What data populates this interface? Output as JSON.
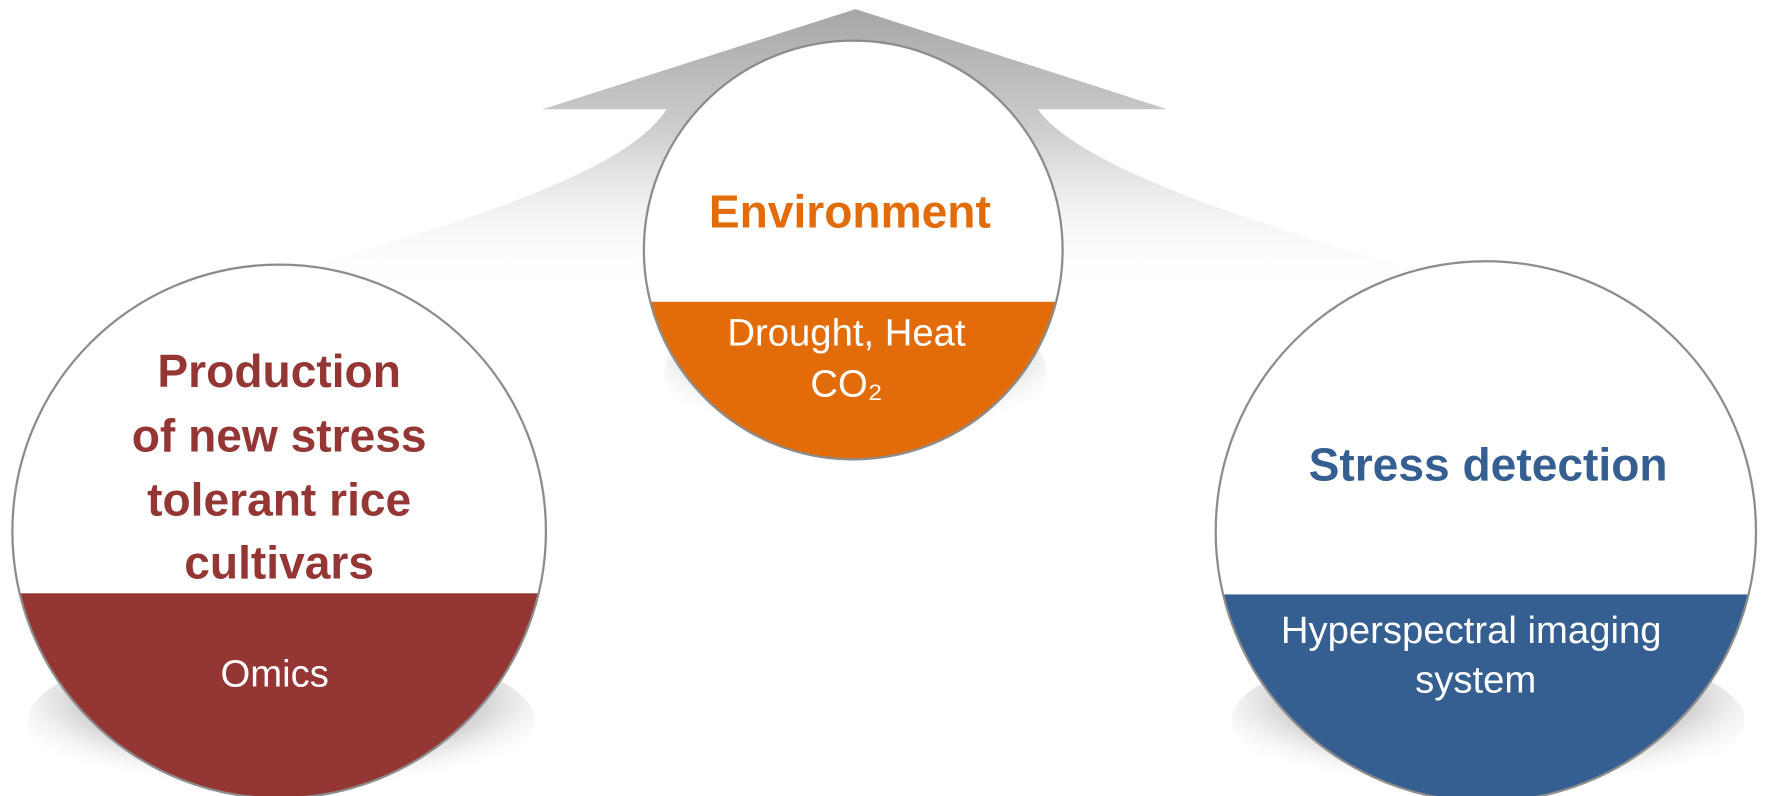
{
  "nodes": [
    {
      "title": [
        "Environment"
      ],
      "subtitle": [
        "Drought, Heat",
        "CO₂"
      ]
    },
    {
      "title": [
        "Production",
        "of new stress",
        "tolerant rice",
        "cultivars"
      ],
      "subtitle": [
        "Omics"
      ]
    },
    {
      "title": [
        "Stress detection"
      ],
      "subtitle": [
        "Hyperspectral imaging",
        "system"
      ]
    }
  ]
}
